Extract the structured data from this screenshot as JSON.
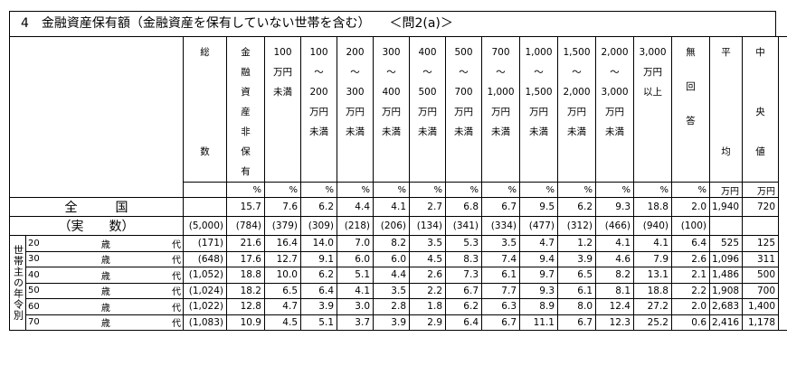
{
  "title": "4　金融資産保有額（金融資産を保有していない世帯を含む）　　＜問2(a)＞",
  "headers": {
    "total": [
      "総",
      "数"
    ],
    "none": [
      "金",
      "融",
      "資",
      "産",
      "非",
      "保",
      "有"
    ],
    "cols": [
      [
        "100",
        "万円",
        "未満"
      ],
      [
        "100",
        "～",
        "200",
        "万円",
        "未満"
      ],
      [
        "200",
        "～",
        "300",
        "万円",
        "未満"
      ],
      [
        "300",
        "～",
        "400",
        "万円",
        "未満"
      ],
      [
        "400",
        "～",
        "500",
        "万円",
        "未満"
      ],
      [
        "500",
        "～",
        "700",
        "万円",
        "未満"
      ],
      [
        "700",
        "～",
        "1,000",
        "万円",
        "未満"
      ],
      [
        "1,000",
        "～",
        "1,500",
        "万円",
        "未満"
      ],
      [
        "1,500",
        "～",
        "2,000",
        "万円",
        "未満"
      ],
      [
        "2,000",
        "～",
        "3,000",
        "万円",
        "未満"
      ],
      [
        "3,000",
        "万円",
        "以上"
      ]
    ],
    "noans": [
      "無",
      "回",
      "答"
    ],
    "avg": [
      "平",
      "均"
    ],
    "median": [
      "中",
      "央",
      "値"
    ]
  },
  "units": {
    "pct": "%",
    "man": "万円"
  },
  "total_row": {
    "label1": "全　　　国",
    "label2": "（実　　数）",
    "pct": [
      "15.7",
      "7.6",
      "6.2",
      "4.4",
      "4.1",
      "2.7",
      "6.8",
      "6.7",
      "9.5",
      "6.2",
      "9.3",
      "18.8",
      "2.0"
    ],
    "counts": [
      "(5,000)",
      "(784)",
      "(379)",
      "(309)",
      "(218)",
      "(206)",
      "(134)",
      "(341)",
      "(334)",
      "(477)",
      "(312)",
      "(466)",
      "(940)",
      "(100)"
    ],
    "avg": "1,940",
    "median": "720"
  },
  "side_label": "世帯主の年令別",
  "age_rows": [
    {
      "age": "20",
      "sai": "歳",
      "dai": "代",
      "n": "(171)",
      "vals": [
        "21.6",
        "16.4",
        "14.0",
        "7.0",
        "8.2",
        "3.5",
        "5.3",
        "3.5",
        "4.7",
        "1.2",
        "4.1",
        "4.1",
        "6.4"
      ],
      "avg": "525",
      "median": "125"
    },
    {
      "age": "30",
      "sai": "歳",
      "dai": "代",
      "n": "(648)",
      "vals": [
        "17.6",
        "12.7",
        "9.1",
        "6.0",
        "6.0",
        "4.5",
        "8.3",
        "7.4",
        "9.4",
        "3.9",
        "4.6",
        "7.9",
        "2.6"
      ],
      "avg": "1,096",
      "median": "311"
    },
    {
      "age": "40",
      "sai": "歳",
      "dai": "代",
      "n": "(1,052)",
      "vals": [
        "18.8",
        "10.0",
        "6.2",
        "5.1",
        "4.4",
        "2.6",
        "7.3",
        "6.1",
        "9.7",
        "6.5",
        "8.2",
        "13.1",
        "2.1"
      ],
      "avg": "1,486",
      "median": "500"
    },
    {
      "age": "50",
      "sai": "歳",
      "dai": "代",
      "n": "(1,024)",
      "vals": [
        "18.2",
        "6.5",
        "6.4",
        "4.1",
        "3.5",
        "2.2",
        "6.7",
        "7.7",
        "9.3",
        "6.1",
        "8.1",
        "18.8",
        "2.2"
      ],
      "avg": "1,908",
      "median": "700"
    },
    {
      "age": "60",
      "sai": "歳",
      "dai": "代",
      "n": "(1,022)",
      "vals": [
        "12.8",
        "4.7",
        "3.9",
        "3.0",
        "2.8",
        "1.8",
        "6.2",
        "6.3",
        "8.9",
        "8.0",
        "12.4",
        "27.2",
        "2.0"
      ],
      "avg": "2,683",
      "median": "1,400"
    },
    {
      "age": "70",
      "sai": "歳",
      "dai": "代",
      "n": "(1,083)",
      "vals": [
        "10.9",
        "4.5",
        "5.1",
        "3.7",
        "3.9",
        "2.9",
        "6.4",
        "6.7",
        "11.1",
        "6.7",
        "12.3",
        "25.2",
        "0.6"
      ],
      "avg": "2,416",
      "median": "1,178"
    }
  ]
}
